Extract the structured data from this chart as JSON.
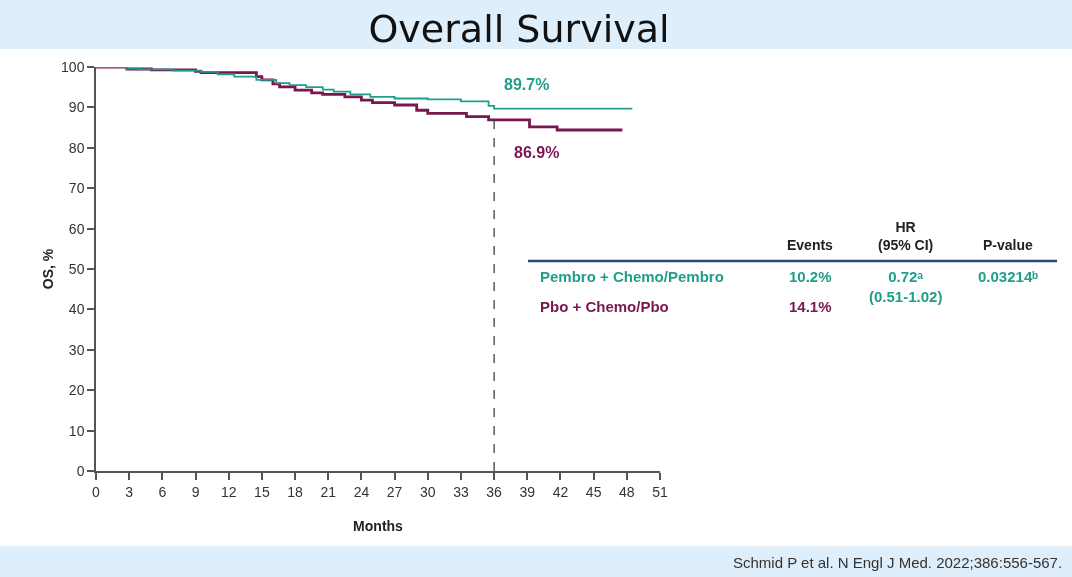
{
  "chart_data": {
    "type": "step",
    "title": "Overall Survival",
    "xlabel": "Months",
    "ylabel": "OS, %",
    "xlim": [
      0,
      51
    ],
    "xticks": [
      0,
      3,
      6,
      9,
      12,
      15,
      18,
      21,
      24,
      27,
      30,
      33,
      36,
      39,
      42,
      45,
      48,
      51
    ],
    "ylim": [
      0,
      100
    ],
    "yticks": [
      0,
      10,
      20,
      30,
      40,
      50,
      60,
      70,
      80,
      90,
      100
    ],
    "grid": false,
    "marker": "none",
    "line_style": "solid",
    "series": [
      {
        "name": "Pembro + Chemo/Pembro",
        "color": "#1f9e89",
        "x": [
          0,
          2.8,
          4,
          7,
          9.5,
          11,
          12.5,
          14.5,
          16.3,
          17.5,
          19,
          20.5,
          21.5,
          23,
          24.8,
          27,
          30,
          33,
          35.5,
          36,
          48.5
        ],
        "values": [
          100,
          99.6,
          99.4,
          99.1,
          98.8,
          98.2,
          97.6,
          96.8,
          96.0,
          95.5,
          95.0,
          94.4,
          93.9,
          93.2,
          92.6,
          92.2,
          92.0,
          91.5,
          90.4,
          89.7,
          89.7
        ]
      },
      {
        "name": "Pbo + Chemo/Pbo",
        "color": "#7a1650",
        "x": [
          0,
          2.8,
          5,
          9,
          9.5,
          14.5,
          15,
          16,
          16.6,
          18,
          19.5,
          20.5,
          22.5,
          24,
          25,
          27,
          29,
          30,
          33.5,
          35.5,
          39.2,
          41.7,
          47.6
        ],
        "values": [
          100,
          99.5,
          99.3,
          98.9,
          98.6,
          97.6,
          96.8,
          95.8,
          95.1,
          94.3,
          93.6,
          93.2,
          92.6,
          91.8,
          91.2,
          90.6,
          89.3,
          88.5,
          87.7,
          86.9,
          85.2,
          84.4,
          84.4
        ]
      }
    ],
    "ref_lines": [
      {
        "axis": "x",
        "value": 36,
        "line_style": "dashed",
        "color": "#333333"
      }
    ],
    "annotations": [
      {
        "text": "89.7%",
        "x": 36,
        "y": 89.7
      },
      {
        "text": "86.9%",
        "x": 36,
        "y": 86.9
      },
      "Events",
      "HR\n(95% CI)",
      "P-value",
      "10.2%",
      "0.72ᵃ\n(0.51-1.02)",
      "0.03214ᵇ",
      "14.1%",
      "Schmid P et al. N Engl J Med. 2022;386:556-567."
    ]
  }
}
